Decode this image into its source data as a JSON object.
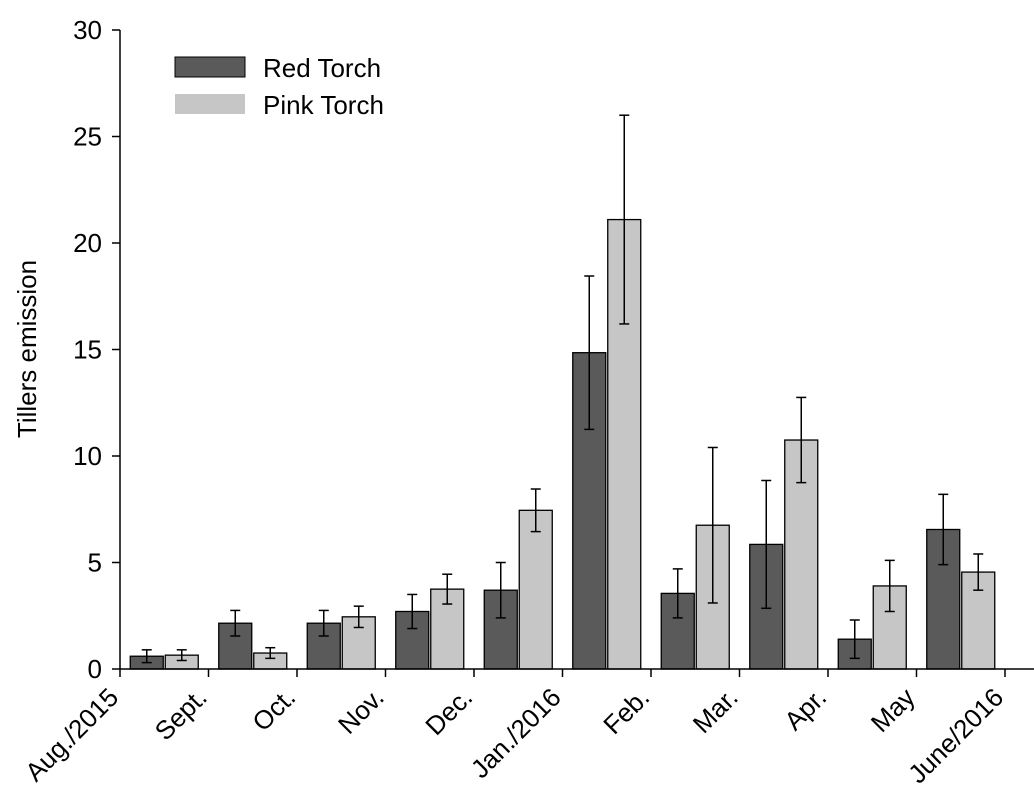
{
  "chart_data": {
    "type": "bar",
    "ylabel": "Tillers emission",
    "xlabel": "",
    "ylim": [
      0,
      30
    ],
    "yticks": [
      0,
      5,
      10,
      15,
      20,
      25,
      30
    ],
    "legend_position": "top-left",
    "grid": false,
    "categories": [
      "Aug./2015",
      "Sept.",
      "Oct.",
      "Nov.",
      "Dec.",
      "Jan./2016",
      "Feb.",
      "Mar.",
      "Apr.",
      "May",
      "June/2016"
    ],
    "series": [
      {
        "name": "Red Torch",
        "color": "#5a5a5a",
        "values": [
          null,
          0.6,
          2.15,
          2.15,
          2.7,
          3.7,
          14.85,
          3.55,
          5.85,
          1.4,
          6.55
        ],
        "errors": [
          null,
          0.3,
          0.6,
          0.6,
          0.8,
          1.3,
          3.6,
          1.15,
          3.0,
          0.9,
          1.65
        ]
      },
      {
        "name": "Pink Torch",
        "color": "#c6c6c6",
        "values": [
          null,
          0.65,
          0.75,
          2.45,
          3.75,
          7.45,
          21.1,
          6.75,
          10.75,
          3.9,
          4.55
        ],
        "errors": [
          null,
          0.25,
          0.25,
          0.5,
          0.7,
          1.0,
          4.9,
          3.65,
          2.0,
          1.2,
          0.85
        ]
      }
    ]
  }
}
